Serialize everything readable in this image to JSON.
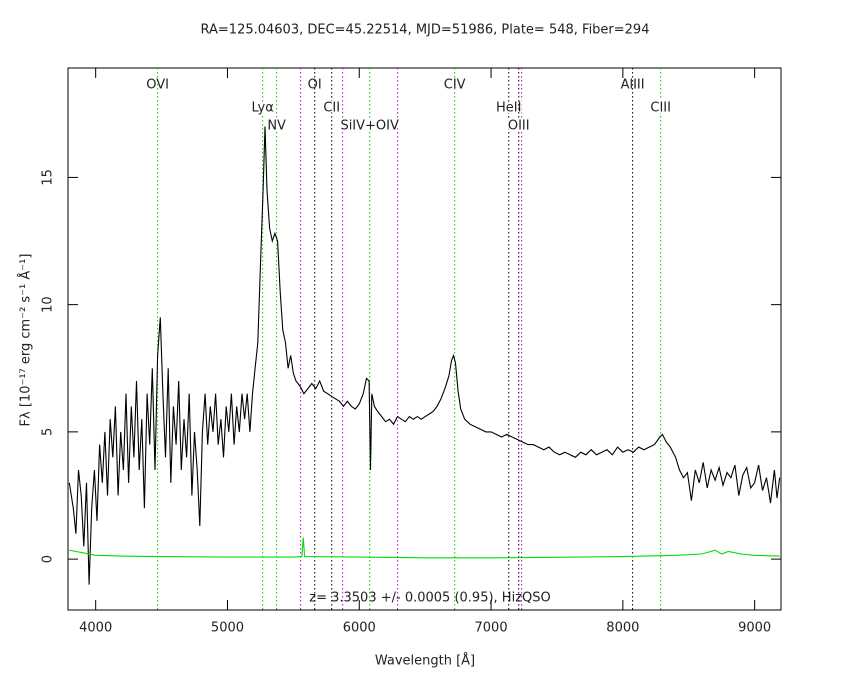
{
  "chart_data": {
    "type": "line",
    "title": "RA=125.04603, DEC=45.22514, MJD=51986, Plate= 548, Fiber=294",
    "x_label": "Wavelength [Å]",
    "y_label": "Fλ [10⁻¹⁷ erg cm⁻² s⁻¹ Å⁻¹]",
    "annotation": "z= 3.3503 +/- 0.0005 (0.95), HizQSO",
    "xlim": [
      3790,
      9200
    ],
    "ylim": [
      -2,
      19.3
    ],
    "xticks": [
      4000,
      5000,
      6000,
      7000,
      8000,
      9000
    ],
    "yticks": [
      0,
      5,
      10,
      15
    ],
    "series": [
      {
        "color": "#000000",
        "x": [
          3800,
          3830,
          3850,
          3870,
          3890,
          3910,
          3930,
          3950,
          3970,
          3990,
          4010,
          4030,
          4050,
          4070,
          4090,
          4110,
          4130,
          4150,
          4170,
          4190,
          4210,
          4230,
          4250,
          4270,
          4290,
          4310,
          4330,
          4350,
          4370,
          4390,
          4410,
          4430,
          4450,
          4470,
          4490,
          4510,
          4530,
          4550,
          4570,
          4590,
          4610,
          4630,
          4650,
          4670,
          4690,
          4710,
          4730,
          4750,
          4770,
          4790,
          4810,
          4830,
          4850,
          4870,
          4890,
          4910,
          4930,
          4950,
          4970,
          4990,
          5010,
          5030,
          5050,
          5070,
          5090,
          5110,
          5130,
          5150,
          5170,
          5190,
          5210,
          5230,
          5250,
          5270,
          5285,
          5300,
          5320,
          5340,
          5360,
          5380,
          5400,
          5420,
          5440,
          5460,
          5480,
          5500,
          5520,
          5550,
          5580,
          5610,
          5640,
          5670,
          5700,
          5730,
          5760,
          5790,
          5820,
          5850,
          5880,
          5910,
          5940,
          5970,
          6000,
          6030,
          6055,
          6075,
          6085,
          6095,
          6115,
          6140,
          6170,
          6200,
          6230,
          6260,
          6290,
          6320,
          6350,
          6380,
          6410,
          6440,
          6470,
          6500,
          6530,
          6560,
          6590,
          6620,
          6650,
          6680,
          6700,
          6715,
          6730,
          6750,
          6770,
          6800,
          6840,
          6880,
          6920,
          6960,
          7000,
          7040,
          7080,
          7120,
          7160,
          7200,
          7240,
          7280,
          7320,
          7360,
          7400,
          7440,
          7480,
          7520,
          7560,
          7600,
          7640,
          7680,
          7720,
          7760,
          7800,
          7840,
          7880,
          7920,
          7960,
          8000,
          8040,
          8080,
          8120,
          8160,
          8200,
          8240,
          8280,
          8300,
          8330,
          8360,
          8400,
          8430,
          8460,
          8490,
          8520,
          8550,
          8580,
          8610,
          8640,
          8670,
          8700,
          8730,
          8760,
          8790,
          8820,
          8850,
          8880,
          8910,
          8940,
          8970,
          9000,
          9030,
          9060,
          9090,
          9120,
          9150,
          9170,
          9190
        ],
        "values": [
          3.0,
          2.0,
          1.0,
          3.5,
          2.5,
          0.5,
          3.0,
          -1.0,
          2.0,
          3.5,
          1.5,
          4.5,
          3.0,
          5.0,
          2.5,
          5.5,
          4.0,
          6.0,
          2.5,
          5.0,
          3.5,
          6.5,
          3.0,
          6.0,
          4.0,
          7.0,
          3.5,
          5.5,
          2.0,
          6.5,
          4.5,
          7.5,
          3.5,
          8.0,
          9.5,
          6.5,
          4.0,
          7.5,
          3.0,
          6.0,
          4.5,
          7.0,
          3.5,
          5.5,
          4.0,
          6.5,
          2.5,
          5.0,
          3.5,
          1.3,
          5.0,
          6.5,
          4.5,
          6.0,
          5.0,
          6.5,
          4.5,
          5.5,
          4.0,
          6.0,
          5.0,
          6.5,
          4.5,
          6.0,
          5.0,
          6.5,
          5.5,
          6.5,
          5.0,
          6.5,
          7.5,
          8.5,
          11.5,
          14.5,
          17.0,
          14.5,
          13.0,
          12.5,
          12.8,
          12.5,
          10.5,
          9.0,
          8.5,
          7.5,
          8.0,
          7.3,
          7.0,
          6.8,
          6.5,
          6.7,
          6.9,
          6.7,
          7.0,
          6.6,
          6.5,
          6.4,
          6.3,
          6.2,
          6.0,
          6.2,
          6.0,
          5.9,
          6.1,
          6.5,
          7.1,
          7.0,
          3.5,
          6.5,
          6.0,
          5.8,
          5.6,
          5.4,
          5.5,
          5.3,
          5.6,
          5.5,
          5.4,
          5.6,
          5.5,
          5.6,
          5.5,
          5.6,
          5.7,
          5.8,
          6.0,
          6.3,
          6.7,
          7.2,
          7.8,
          8.0,
          7.7,
          6.6,
          5.9,
          5.5,
          5.3,
          5.2,
          5.1,
          5.0,
          5.0,
          4.9,
          4.8,
          4.9,
          4.8,
          4.7,
          4.6,
          4.5,
          4.5,
          4.4,
          4.3,
          4.4,
          4.2,
          4.1,
          4.2,
          4.1,
          4.0,
          4.2,
          4.1,
          4.3,
          4.1,
          4.2,
          4.3,
          4.1,
          4.4,
          4.2,
          4.3,
          4.2,
          4.4,
          4.3,
          4.4,
          4.5,
          4.8,
          4.9,
          4.6,
          4.4,
          4.0,
          3.5,
          3.2,
          3.4,
          2.3,
          3.5,
          3.0,
          3.8,
          2.8,
          3.5,
          3.1,
          3.6,
          2.9,
          3.4,
          3.2,
          3.7,
          2.5,
          3.3,
          3.6,
          2.8,
          3.0,
          3.7,
          2.7,
          3.2,
          2.2,
          3.5,
          2.4,
          3.2
        ]
      },
      {
        "color": "#00e000",
        "x": [
          3800,
          3850,
          3900,
          4000,
          4200,
          4500,
          5000,
          5500,
          5565,
          5575,
          5585,
          6000,
          6500,
          7000,
          7500,
          8000,
          8400,
          8600,
          8700,
          8750,
          8800,
          8900,
          9000,
          9190
        ],
        "values": [
          0.35,
          0.3,
          0.25,
          0.15,
          0.12,
          0.1,
          0.08,
          0.08,
          0.1,
          0.85,
          0.1,
          0.08,
          0.05,
          0.05,
          0.07,
          0.1,
          0.15,
          0.2,
          0.35,
          0.2,
          0.3,
          0.2,
          0.15,
          0.12
        ]
      }
    ],
    "lines": [
      {
        "label": "OVI",
        "x": 4470,
        "color": "#00cc00"
      },
      {
        "label": "Lyα",
        "x": 5267,
        "color": "#00cc00"
      },
      {
        "label": "NV",
        "x": 5373,
        "color": "#00cc00"
      },
      {
        "label": "OI",
        "x": 5662,
        "color": "#000000"
      },
      {
        "label": "CII",
        "x": 5791,
        "color": "#000000"
      },
      {
        "label": "SiIV+OIV",
        "x": 6079,
        "color": "#00cc00"
      },
      {
        "label": "CIV",
        "x": 6724,
        "color": "#00cc00"
      },
      {
        "label": "HeII",
        "x": 7134,
        "color": "#000000"
      },
      {
        "label": "OIII",
        "x": 7210,
        "color": "#000000"
      },
      {
        "label": "AlIII",
        "x": 8074,
        "color": "#000000"
      },
      {
        "label": "CIII",
        "x": 8287,
        "color": "#00cc00"
      }
    ],
    "sky_lines": [
      {
        "x": 5555,
        "color": "#cc00cc"
      },
      {
        "x": 5874,
        "color": "#cc00cc"
      },
      {
        "x": 6291,
        "color": "#cc00cc"
      },
      {
        "x": 7232,
        "color": "#cc00cc"
      }
    ]
  }
}
